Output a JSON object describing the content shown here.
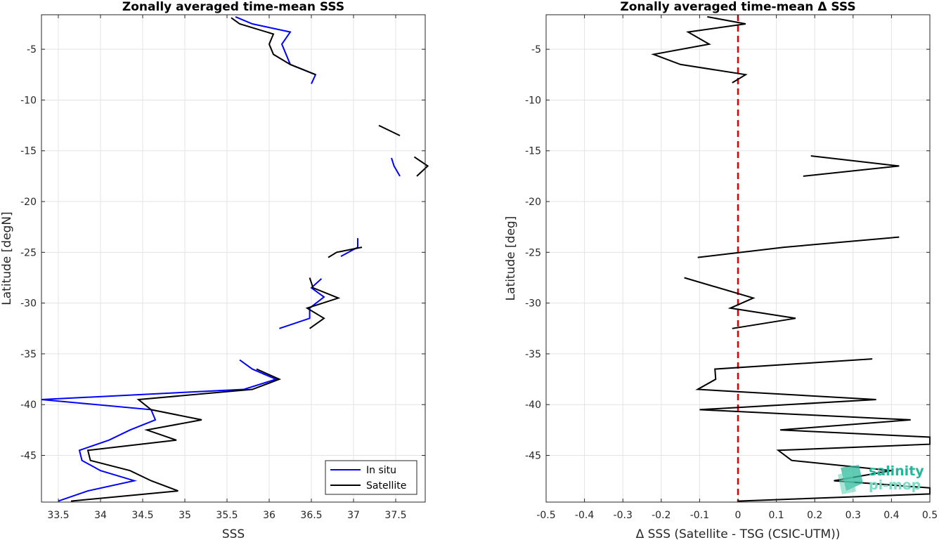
{
  "chart_data": [
    {
      "type": "line",
      "title": "Zonally averaged time-mean SSS",
      "xlabel": "SSS",
      "ylabel": "Latitude [degN]",
      "xlim": [
        33.3,
        37.85
      ],
      "ylim": [
        -49.6,
        -1.6
      ],
      "x_ticks": [
        "33.5",
        "34",
        "34.5",
        "35",
        "35.5",
        "36",
        "36.5",
        "37",
        "37.5"
      ],
      "y_ticks": [
        "-5",
        "-10",
        "-15",
        "-20",
        "-25",
        "-30",
        "-35",
        "-40",
        "-45"
      ],
      "grid": true,
      "legend_position": "bottom-right",
      "series": [
        {
          "name": "In situ",
          "color": "#0000ff",
          "segments": [
            [
              [
                35.6,
                -1.8
              ],
              [
                35.8,
                -2.5
              ],
              [
                36.25,
                -3.3
              ],
              [
                36.15,
                -4.5
              ],
              [
                36.25,
                -6.5
              ],
              [
                36.55,
                -7.5
              ],
              [
                36.5,
                -8.4
              ]
            ],
            [
              [
                37.45,
                -15.7
              ],
              [
                37.48,
                -16.5
              ],
              [
                37.55,
                -17.5
              ]
            ],
            [
              [
                37.05,
                -23.6
              ],
              [
                37.05,
                -24.5
              ],
              [
                36.85,
                -25.4
              ]
            ],
            [
              [
                36.62,
                -27.6
              ],
              [
                36.5,
                -28.5
              ],
              [
                36.65,
                -29.4
              ],
              [
                36.48,
                -30.5
              ],
              [
                36.48,
                -31.5
              ],
              [
                36.12,
                -32.5
              ]
            ],
            [
              [
                35.65,
                -35.6
              ],
              [
                35.8,
                -36.5
              ],
              [
                36.08,
                -37.5
              ],
              [
                35.7,
                -38.5
              ],
              [
                33.3,
                -39.5
              ],
              [
                34.6,
                -40.5
              ],
              [
                34.65,
                -41.5
              ],
              [
                34.35,
                -42.5
              ],
              [
                34.1,
                -43.5
              ],
              [
                33.75,
                -44.5
              ],
              [
                33.78,
                -45.5
              ],
              [
                34.0,
                -46.5
              ],
              [
                34.4,
                -47.5
              ],
              [
                33.85,
                -48.5
              ],
              [
                33.5,
                -49.5
              ]
            ]
          ]
        },
        {
          "name": "Satellite",
          "color": "#000000",
          "segments": [
            [
              [
                35.55,
                -1.9
              ],
              [
                35.65,
                -2.5
              ],
              [
                36.05,
                -3.5
              ],
              [
                36.0,
                -4.5
              ],
              [
                36.05,
                -5.5
              ],
              [
                36.25,
                -6.5
              ],
              [
                36.55,
                -7.5
              ]
            ],
            [
              [
                37.3,
                -12.5
              ],
              [
                37.55,
                -13.5
              ]
            ],
            [
              [
                37.72,
                -15.6
              ],
              [
                37.88,
                -16.5
              ],
              [
                37.75,
                -17.5
              ]
            ],
            [
              [
                37.1,
                -24.5
              ],
              [
                36.8,
                -25.0
              ],
              [
                36.7,
                -25.5
              ]
            ],
            [
              [
                36.48,
                -27.5
              ],
              [
                36.52,
                -28.5
              ],
              [
                36.82,
                -29.5
              ],
              [
                36.45,
                -30.5
              ],
              [
                36.65,
                -31.5
              ],
              [
                36.48,
                -32.5
              ]
            ],
            [
              [
                35.85,
                -36.5
              ],
              [
                36.12,
                -37.5
              ],
              [
                35.8,
                -38.5
              ],
              [
                34.45,
                -39.5
              ],
              [
                34.6,
                -40.5
              ],
              [
                35.2,
                -41.5
              ],
              [
                34.55,
                -42.5
              ],
              [
                34.9,
                -43.5
              ],
              [
                33.85,
                -44.5
              ],
              [
                33.88,
                -45.5
              ],
              [
                34.35,
                -46.5
              ],
              [
                34.6,
                -47.5
              ],
              [
                34.92,
                -48.5
              ],
              [
                33.65,
                -49.5
              ]
            ]
          ]
        }
      ]
    },
    {
      "type": "line",
      "title": "Zonally averaged time-mean Δ SSS",
      "xlabel": "Δ SSS (Satellite - TSG (CSIC-UTM))",
      "ylabel": "Latitude [deg]",
      "xlim": [
        -0.5,
        0.5
      ],
      "ylim": [
        -49.6,
        -1.6
      ],
      "x_ticks": [
        "-0.5",
        "-0.4",
        "-0.3",
        "-0.2",
        "-0.1",
        "0",
        "0.1",
        "0.2",
        "0.3",
        "0.4",
        "0.5"
      ],
      "y_ticks": [
        "-5",
        "-10",
        "-15",
        "-20",
        "-25",
        "-30",
        "-35",
        "-40",
        "-45"
      ],
      "grid": true,
      "reference_line": {
        "x": 0,
        "color": "#dd0000",
        "style": "dashed"
      },
      "series": [
        {
          "color": "#000000",
          "segments": [
            [
              [
                -0.08,
                -1.8
              ],
              [
                0.02,
                -2.5
              ],
              [
                -0.13,
                -3.3
              ],
              [
                -0.075,
                -4.5
              ],
              [
                -0.22,
                -5.5
              ],
              [
                -0.15,
                -6.5
              ],
              [
                0.02,
                -7.5
              ],
              [
                -0.015,
                -8.3
              ]
            ],
            [
              [
                0.19,
                -15.5
              ],
              [
                0.42,
                -16.5
              ],
              [
                0.17,
                -17.5
              ]
            ],
            [
              [
                0.42,
                -23.5
              ],
              [
                0.12,
                -24.5
              ],
              [
                -0.105,
                -25.5
              ]
            ],
            [
              [
                -0.14,
                -27.5
              ],
              [
                0.04,
                -29.5
              ],
              [
                -0.02,
                -30.5
              ],
              [
                0.15,
                -31.5
              ],
              [
                -0.015,
                -32.5
              ]
            ],
            [
              [
                0.35,
                -35.5
              ],
              [
                -0.06,
                -36.5
              ],
              [
                -0.058,
                -37.5
              ],
              [
                -0.105,
                -38.5
              ],
              [
                0.36,
                -39.5
              ],
              [
                -0.1,
                -40.5
              ],
              [
                0.45,
                -41.5
              ],
              [
                0.11,
                -42.5
              ],
              [
                0.5,
                -43.2
              ],
              [
                0.5,
                -43.9
              ],
              [
                0.105,
                -44.5
              ],
              [
                0.14,
                -45.5
              ],
              [
                0.4,
                -46.5
              ],
              [
                0.25,
                -47.5
              ],
              [
                0.5,
                -48.2
              ],
              [
                0.5,
                -48.8
              ],
              [
                0.0,
                -49.5
              ]
            ]
          ]
        }
      ]
    }
  ],
  "legend": {
    "items": [
      "In situ",
      "Satellite"
    ]
  },
  "watermark": {
    "line1": "salinity",
    "line2": "pi-mep"
  }
}
